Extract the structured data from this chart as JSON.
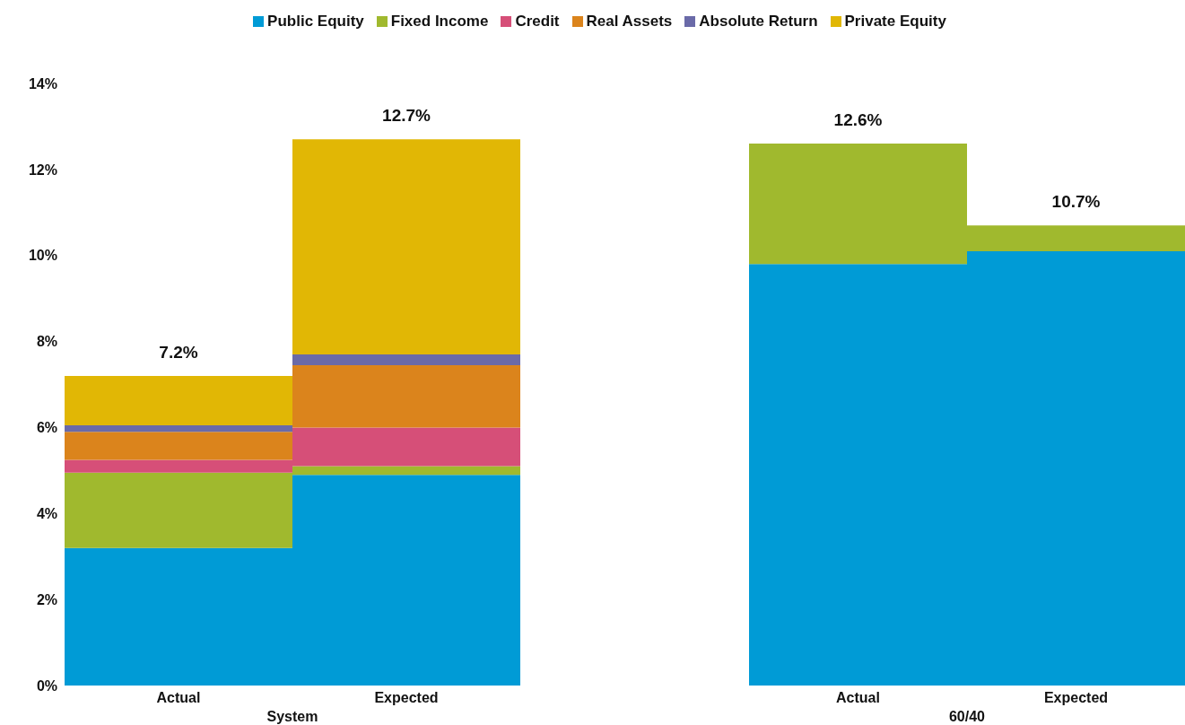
{
  "chart_data": [
    {
      "type": "bar",
      "stacked": true,
      "xlabel": "System",
      "categories": [
        "Actual",
        "Expected"
      ],
      "legend": "top",
      "ylim": [
        0,
        14
      ],
      "yticks": [
        {
          "value": 0,
          "label": "0%"
        },
        {
          "value": 2,
          "label": "2%"
        },
        {
          "value": 4,
          "label": "4%"
        },
        {
          "value": 6,
          "label": "6%"
        },
        {
          "value": 8,
          "label": "8%"
        },
        {
          "value": 10,
          "label": "10%"
        },
        {
          "value": 12,
          "label": "12%"
        },
        {
          "value": 14,
          "label": "14%"
        }
      ],
      "totals": [
        "7.2%",
        "12.7%"
      ],
      "series": [
        {
          "name": "Public Equity",
          "color": "#009bd6",
          "values": [
            3.2,
            4.9
          ]
        },
        {
          "name": "Fixed Income",
          "color": "#a0b92e",
          "values": [
            1.75,
            0.2
          ]
        },
        {
          "name": "Credit",
          "color": "#d64f78",
          "values": [
            0.3,
            0.9
          ]
        },
        {
          "name": "Real Assets",
          "color": "#db841c",
          "values": [
            0.65,
            1.45
          ]
        },
        {
          "name": "Absolute Return",
          "color": "#6a6aa8",
          "values": [
            0.15,
            0.25
          ]
        },
        {
          "name": "Private Equity",
          "color": "#e1b705",
          "values": [
            1.15,
            5.0
          ]
        }
      ]
    },
    {
      "type": "bar",
      "stacked": true,
      "xlabel": "60/40",
      "categories": [
        "Actual",
        "Expected"
      ],
      "tick_labels": "x",
      "ylim": [
        0,
        14
      ],
      "totals": [
        "12.6%",
        "10.7%"
      ],
      "series": [
        {
          "name": "Public Equity",
          "color": "#009bd6",
          "values": [
            9.8,
            10.1
          ]
        },
        {
          "name": "Fixed Income",
          "color": "#a0b92e",
          "values": [
            2.8,
            0.6
          ]
        }
      ]
    }
  ]
}
